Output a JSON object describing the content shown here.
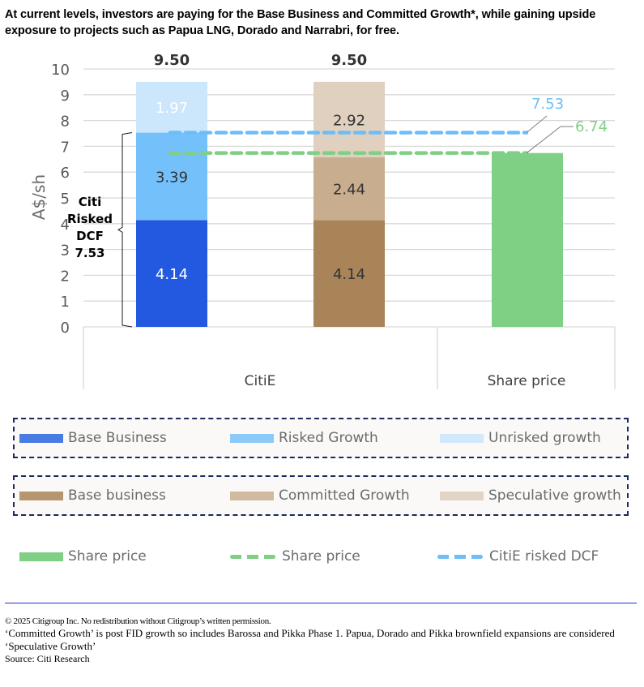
{
  "title": "At current levels, investors are paying for the Base Business and Committed Growth*, while gaining upside exposure to projects such as Papua LNG, Dorado and Narrabri, for free.",
  "chart_data": {
    "type": "bar",
    "stacked": true,
    "ylabel": "A$/sh",
    "ylim": [
      0,
      10
    ],
    "yticks": [
      "0",
      "1",
      "2",
      "3",
      "4",
      "5",
      "6",
      "7",
      "8",
      "9",
      "10"
    ],
    "grid": true,
    "category_groups": [
      {
        "label": "CitiE",
        "bars": 2
      },
      {
        "label": "Share price",
        "bars": 1
      }
    ],
    "bars": [
      {
        "name": "citi-risked-dcf-bar",
        "total_label": "9.50",
        "segments": [
          {
            "series": "Base Business",
            "value": 4.14,
            "label": "4.14",
            "color": "#2359e0",
            "label_color": "#ffffff"
          },
          {
            "series": "Risked Growth",
            "value": 3.39,
            "label": "3.39",
            "color": "#74c0fb",
            "label_color": "#333333"
          },
          {
            "series": "Unrisked growth",
            "value": 1.97,
            "label": "1.97",
            "color": "#cce6fb",
            "label_color": "#ffffff"
          }
        ]
      },
      {
        "name": "committed-speculative-bar",
        "total_label": "9.50",
        "segments": [
          {
            "series": "Base business",
            "value": 4.14,
            "label": "4.14",
            "color": "#a88458",
            "label_color": "#333333"
          },
          {
            "series": "Committed Growth",
            "value": 2.44,
            "label": "2.44",
            "color": "#c8ad8e",
            "label_color": "#333333"
          },
          {
            "series": "Speculative growth",
            "value": 2.92,
            "label": "2.92",
            "color": "#dfd0bf",
            "label_color": "#333333"
          }
        ]
      },
      {
        "name": "share-price-bar",
        "total_label": "",
        "segments": [
          {
            "series": "Share price",
            "value": 6.74,
            "label": "",
            "color": "#7fcf85",
            "label_color": "#333333"
          }
        ]
      }
    ],
    "reference_lines": [
      {
        "name": "CitiE risked DCF",
        "value": 7.53,
        "label": "7.53",
        "color": "#6dbdf7",
        "style": "dashed"
      },
      {
        "name": "Share price",
        "value": 6.74,
        "label": "6.74",
        "color": "#7fcf85",
        "style": "dashed"
      }
    ],
    "annotations": [
      {
        "text_lines": [
          "Citi",
          "Risked",
          "DCF",
          "7.53"
        ],
        "spans": [
          0,
          7.53
        ],
        "type": "brace"
      }
    ]
  },
  "legend": {
    "row1": [
      {
        "label": "Base Business",
        "color": "#4a7be3"
      },
      {
        "label": "Risked Growth",
        "color": "#8ccaf9"
      },
      {
        "label": "Unrisked growth",
        "color": "#d2e8fb"
      }
    ],
    "row2": [
      {
        "label": "Base business",
        "color": "#b69670"
      },
      {
        "label": "Committed Growth",
        "color": "#d2baa0"
      },
      {
        "label": "Speculative growth",
        "color": "#e2d4c5"
      }
    ],
    "row3": [
      {
        "label": "Share price",
        "color": "#7fcf85",
        "kind": "solid"
      },
      {
        "label": "Share price",
        "color": "#7fcf85",
        "kind": "dashed"
      },
      {
        "label": "CitiE risked DCF",
        "color": "#6dbdf7",
        "kind": "dashed"
      }
    ]
  },
  "footer": {
    "copyright": "© 2025 Citigroup Inc. No redistribution without Citigroup’s written permission.",
    "note": "‘Committed Growth’ is post FID growth so includes Barossa and Pikka Phase 1. Papua, Dorado and Pikka brownfield expansions are considered ‘Speculative Growth’",
    "source": "Source: Citi Research"
  }
}
